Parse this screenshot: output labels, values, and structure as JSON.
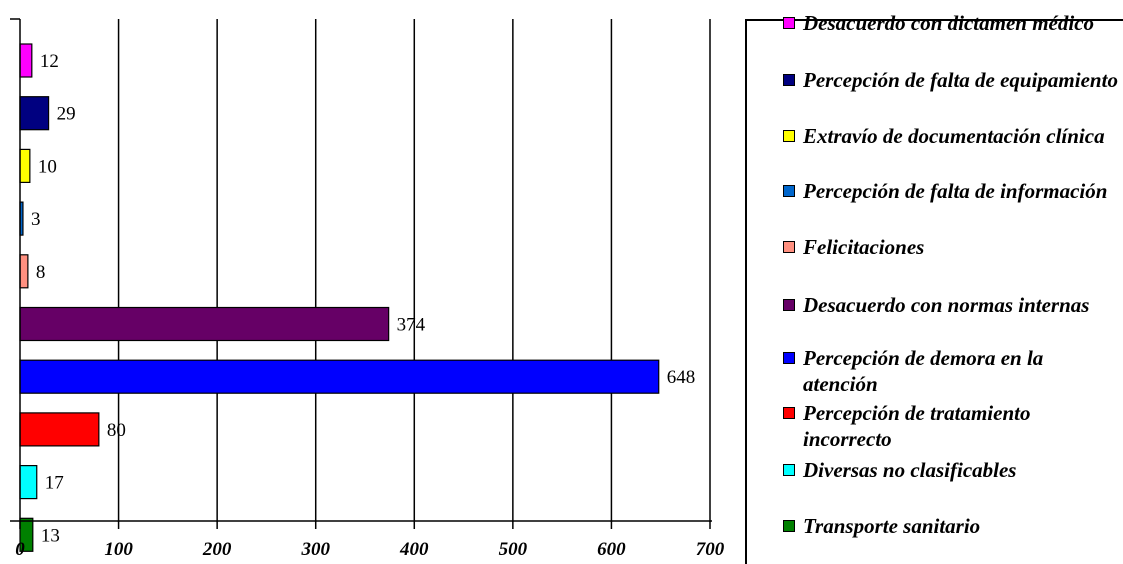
{
  "chart_data": {
    "type": "bar",
    "orientation": "horizontal",
    "title": "",
    "xlabel": "",
    "ylabel": "",
    "xlim": [
      0,
      700
    ],
    "x_ticks": [
      "0",
      "100",
      "200",
      "300",
      "400",
      "500",
      "600",
      "700"
    ],
    "grid": "vertical",
    "legend_position": "right",
    "series": [
      {
        "name": "Desacuerdo con dictamen médico",
        "value": 12,
        "label": "12",
        "color": "#ff00ff"
      },
      {
        "name": "Percepción de falta de equipamiento",
        "value": 29,
        "label": "29",
        "color": "#000080"
      },
      {
        "name": "Extravío de documentación clínica",
        "value": 10,
        "label": "10",
        "color": "#ffff00"
      },
      {
        "name": "Percepción de falta de información",
        "value": 3,
        "label": "3",
        "color": "#0066cc"
      },
      {
        "name": "Felicitaciones",
        "value": 8,
        "label": "8",
        "color": "#ff9080"
      },
      {
        "name": "Desacuerdo con normas internas",
        "value": 374,
        "label": "374",
        "color": "#660066"
      },
      {
        "name": "Percepción de demora en la atención",
        "value": 648,
        "label": "648",
        "color": "#0000ff"
      },
      {
        "name": "Percepción de tratamiento incorrecto",
        "value": 80,
        "label": "80",
        "color": "#ff0000"
      },
      {
        "name": "Diversas no clasificables",
        "value": 17,
        "label": "17",
        "color": "#00ffff"
      },
      {
        "name": "Transporte sanitario",
        "value": 13,
        "label": "13",
        "color": "#008000"
      }
    ]
  }
}
